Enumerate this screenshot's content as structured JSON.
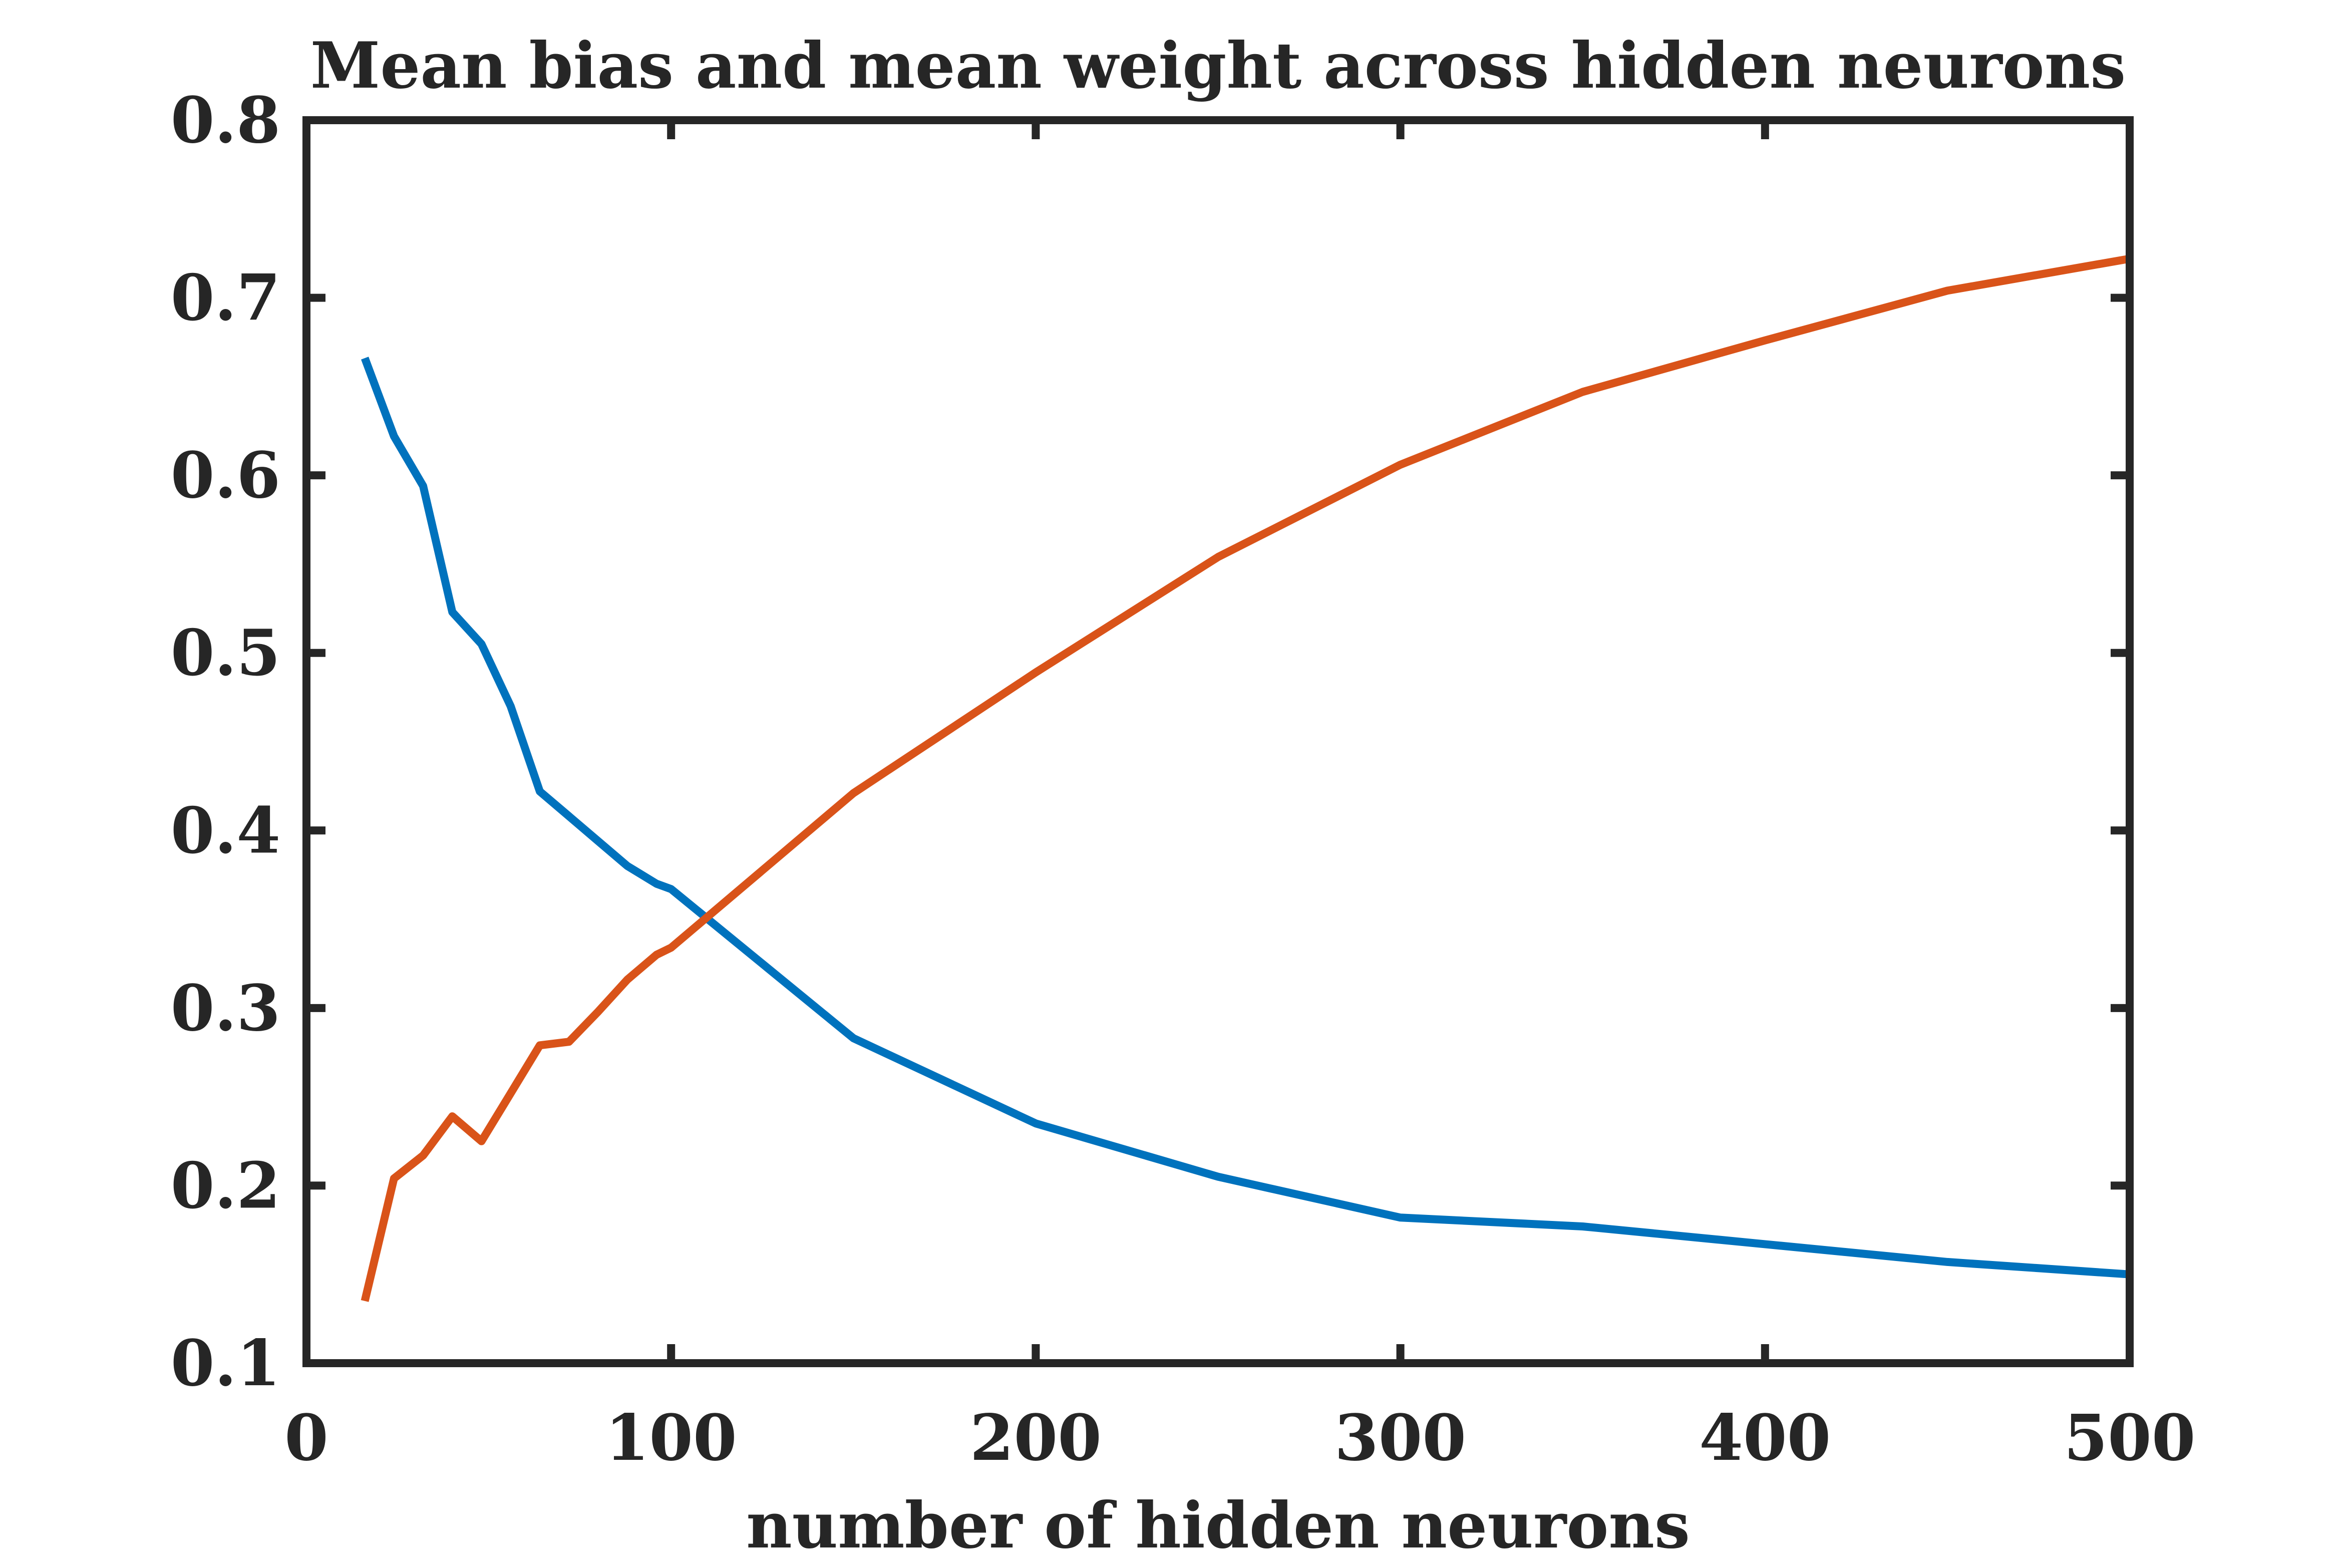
{
  "chart_data": {
    "type": "line",
    "title": "Mean bias and mean weight across hidden neurons",
    "xlabel": "number of hidden neurons",
    "ylabel": "",
    "xlim": [
      0,
      500
    ],
    "ylim": [
      0.1,
      0.8
    ],
    "xticks": [
      0,
      100,
      200,
      300,
      400,
      500
    ],
    "xtick_labels": [
      "0",
      "100",
      "200",
      "300",
      "400",
      "500"
    ],
    "yticks": [
      0.1,
      0.2,
      0.3,
      0.4,
      0.5,
      0.6,
      0.7,
      0.8
    ],
    "ytick_labels": [
      "0.1",
      "0.2",
      "0.3",
      "0.4",
      "0.5",
      "0.6",
      "0.7",
      "0.8"
    ],
    "grid": false,
    "legend": "none",
    "series": [
      {
        "color": "#0072BD",
        "x": [
          16,
          24,
          32,
          40,
          48,
          56,
          64,
          72,
          80,
          88,
          96,
          100,
          150,
          200,
          250,
          300,
          350,
          400,
          450,
          500
        ],
        "y": [
          0.666,
          0.622,
          0.594,
          0.523,
          0.505,
          0.47,
          0.422,
          0.408,
          0.394,
          0.38,
          0.37,
          0.367,
          0.283,
          0.235,
          0.205,
          0.182,
          0.177,
          0.167,
          0.157,
          0.15
        ]
      },
      {
        "color": "#D95319",
        "x": [
          16,
          24,
          32,
          40,
          48,
          56,
          64,
          72,
          80,
          88,
          96,
          100,
          150,
          200,
          250,
          300,
          350,
          400,
          450,
          500
        ],
        "y": [
          0.135,
          0.204,
          0.217,
          0.239,
          0.225,
          0.252,
          0.279,
          0.281,
          0.298,
          0.316,
          0.33,
          0.334,
          0.421,
          0.489,
          0.554,
          0.606,
          0.647,
          0.676,
          0.704,
          0.722
        ]
      }
    ]
  }
}
